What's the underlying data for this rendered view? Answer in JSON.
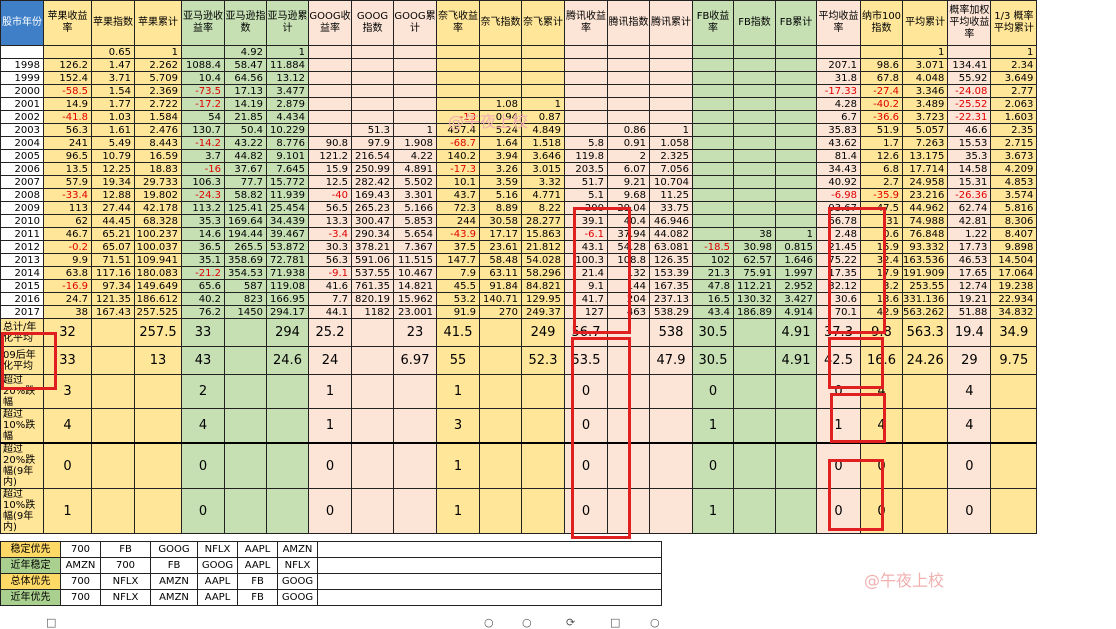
{
  "headers": [
    "股市年份",
    "苹果收益率",
    "苹果指数",
    "苹果累计",
    "亚马逊收益率",
    "亚马逊指数",
    "亚马逊累计",
    "GOOG收益率",
    "GOOG指数",
    "GOOG累计",
    "奈飞收益率",
    "奈飞指数",
    "奈飞累计",
    "腾讯收益率",
    "腾讯指数",
    "腾讯累计",
    "FB收益率",
    "FB指数",
    "FB累计",
    "平均收益率",
    "纳市100指数",
    "平均累计",
    "概率加权平均收益率",
    "1/3 概率平均累计"
  ],
  "col_colors": [
    "",
    "y",
    "y",
    "y",
    "g",
    "g",
    "g",
    "p",
    "p",
    "p",
    "y",
    "y",
    "y",
    "p",
    "p",
    "p",
    "g",
    "g",
    "g",
    "p",
    "y",
    "y",
    "p",
    "y"
  ],
  "base_row": [
    "",
    "",
    "0.65",
    "1",
    "",
    "4.92",
    "1",
    "",
    "",
    "",
    "",
    "",
    "",
    "",
    "",
    "",
    "",
    "",
    "",
    "",
    "",
    "1",
    "",
    "1"
  ],
  "rows": [
    [
      "1998",
      "126.2",
      "1.47",
      "2.262",
      "1088.4",
      "58.47",
      "11.884",
      "",
      "",
      "",
      "",
      "",
      "",
      "",
      "",
      "",
      "",
      "",
      "",
      "207.1",
      "98.6",
      "3.071",
      "134.41",
      "2.34"
    ],
    [
      "1999",
      "152.4",
      "3.71",
      "5.709",
      "10.4",
      "64.56",
      "13.12",
      "",
      "",
      "",
      "",
      "",
      "",
      "",
      "",
      "",
      "",
      "",
      "",
      "31.8",
      "67.8",
      "4.048",
      "55.92",
      "3.649"
    ],
    [
      "2000",
      "-58.5",
      "1.54",
      "2.369",
      "-73.5",
      "17.13",
      "3.477",
      "",
      "",
      "",
      "",
      "",
      "",
      "",
      "",
      "",
      "",
      "",
      "",
      "-17.33",
      "-27.4",
      "3.346",
      "-24.08",
      "2.77"
    ],
    [
      "2001",
      "14.9",
      "1.77",
      "2.722",
      "-17.2",
      "14.19",
      "2.879",
      "",
      "",
      "",
      "",
      "1.08",
      "1",
      "",
      "",
      "",
      "",
      "",
      "",
      "4.28",
      "-40.2",
      "3.489",
      "-25.52",
      "2.063"
    ],
    [
      "2002",
      "-41.8",
      "1.03",
      "1.584",
      "54",
      "21.85",
      "4.434",
      "",
      "",
      "",
      "-13",
      "0.94",
      "0.87",
      "",
      "",
      "",
      "",
      "",
      "",
      "6.7",
      "-36.6",
      "3.723",
      "-22.31",
      "1.603"
    ],
    [
      "2003",
      "56.3",
      "1.61",
      "2.476",
      "130.7",
      "50.4",
      "10.229",
      "",
      "51.3",
      "1",
      "457.4",
      "5.24",
      "4.849",
      "",
      "0.86",
      "1",
      "",
      "",
      "",
      "35.83",
      "51.9",
      "5.057",
      "46.6",
      "2.35"
    ],
    [
      "2004",
      "241",
      "5.49",
      "8.443",
      "-14.2",
      "43.22",
      "8.776",
      "90.8",
      "97.9",
      "1.908",
      "-68.7",
      "1.64",
      "1.518",
      "5.8",
      "0.91",
      "1.058",
      "",
      "",
      "",
      "43.62",
      "1.7",
      "7.263",
      "15.53",
      "2.715"
    ],
    [
      "2005",
      "96.5",
      "10.79",
      "16.59",
      "3.7",
      "44.82",
      "9.101",
      "121.2",
      "216.54",
      "4.22",
      "140.2",
      "3.94",
      "3.646",
      "119.8",
      "2",
      "2.325",
      "",
      "",
      "",
      "81.4",
      "12.6",
      "13.175",
      "35.3",
      "3.673"
    ],
    [
      "2006",
      "13.5",
      "12.25",
      "18.83",
      "-16",
      "37.67",
      "7.645",
      "15.9",
      "250.99",
      "4.891",
      "-17.3",
      "3.26",
      "3.015",
      "203.5",
      "6.07",
      "7.056",
      "",
      "",
      "",
      "34.43",
      "6.8",
      "17.714",
      "14.58",
      "4.209"
    ],
    [
      "2007",
      "57.9",
      "19.34",
      "29.733",
      "106.3",
      "77.7",
      "15.772",
      "12.5",
      "282.42",
      "5.502",
      "10.1",
      "3.59",
      "3.32",
      "51.7",
      "9.21",
      "10.704",
      "",
      "",
      "",
      "40.92",
      "2.7",
      "24.958",
      "15.31",
      "4.853"
    ],
    [
      "2008",
      "-33.4",
      "12.88",
      "19.802",
      "-24.3",
      "58.82",
      "11.939",
      "-40",
      "169.43",
      "3.301",
      "43.7",
      "5.16",
      "4.771",
      "5.1",
      "9.68",
      "11.25",
      "",
      "",
      "",
      "-6.98",
      "-35.9",
      "23.216",
      "-26.36",
      "3.574"
    ],
    [
      "2009",
      "113",
      "27.44",
      "42.178",
      "113.2",
      "125.41",
      "25.454",
      "56.5",
      "265.23",
      "5.166",
      "72.3",
      "8.89",
      "8.22",
      "200",
      "29.04",
      "33.75",
      "",
      "",
      "",
      "93.67",
      "47.5",
      "44.962",
      "62.74",
      "5.816"
    ],
    [
      "2010",
      "62",
      "44.45",
      "68.328",
      "35.3",
      "169.64",
      "34.439",
      "13.3",
      "300.47",
      "5.853",
      "244",
      "30.58",
      "28.277",
      "39.1",
      "40.4",
      "46.946",
      "",
      "",
      "",
      "66.78",
      "31",
      "74.988",
      "42.81",
      "8.306"
    ],
    [
      "2011",
      "46.7",
      "65.21",
      "100.237",
      "14.6",
      "194.44",
      "39.467",
      "-3.4",
      "290.34",
      "5.654",
      "-43.9",
      "17.17",
      "15.863",
      "-6.1",
      "37.94",
      "44.082",
      "",
      "38",
      "1",
      "2.48",
      "0.6",
      "76.848",
      "1.22",
      "8.407"
    ],
    [
      "2012",
      "-0.2",
      "65.07",
      "100.037",
      "36.5",
      "265.5",
      "53.872",
      "30.3",
      "378.21",
      "7.367",
      "37.5",
      "23.61",
      "21.812",
      "43.1",
      "54.28",
      "63.081",
      "-18.5",
      "30.98",
      "0.815",
      "21.45",
      "15.9",
      "93.332",
      "17.73",
      "9.898"
    ],
    [
      "2013",
      "9.9",
      "71.51",
      "109.941",
      "35.1",
      "358.69",
      "72.781",
      "56.3",
      "591.06",
      "11.515",
      "147.7",
      "58.48",
      "54.028",
      "100.3",
      "108.8",
      "126.35",
      "102",
      "62.57",
      "1.646",
      "75.22",
      "32.4",
      "163.536",
      "46.53",
      "14.504"
    ],
    [
      "2014",
      "63.8",
      "117.16",
      "180.083",
      "-21.2",
      "354.53",
      "71.938",
      "-9.1",
      "537.55",
      "10.467",
      "7.9",
      "63.11",
      "58.296",
      "21.4",
      "132",
      "153.39",
      "21.3",
      "75.91",
      "1.997",
      "17.35",
      "17.9",
      "191.909",
      "17.65",
      "17.064"
    ],
    [
      "2015",
      "-16.9",
      "97.34",
      "149.649",
      "65.6",
      "587",
      "119.08",
      "41.6",
      "761.35",
      "14.821",
      "45.5",
      "91.84",
      "84.821",
      "9.1",
      "144",
      "167.35",
      "47.8",
      "112.21",
      "2.952",
      "32.12",
      "3.2",
      "253.55",
      "12.74",
      "19.238"
    ],
    [
      "2016",
      "24.7",
      "121.35",
      "186.612",
      "40.2",
      "823",
      "166.95",
      "7.7",
      "820.19",
      "15.962",
      "53.2",
      "140.71",
      "129.95",
      "41.7",
      "204",
      "237.13",
      "16.5",
      "130.32",
      "3.427",
      "30.6",
      "13.6",
      "331.136",
      "19.21",
      "22.934"
    ],
    [
      "2017",
      "38",
      "167.43",
      "257.525",
      "76.2",
      "1450",
      "294.17",
      "44.1",
      "1182",
      "23.001",
      "91.9",
      "270",
      "249.37",
      "127",
      "463",
      "538.29",
      "43.4",
      "186.89",
      "4.914",
      "70.1",
      "42.9",
      "563.262",
      "51.88",
      "34.832"
    ]
  ],
  "summary_rows": [
    [
      "总计/年化平均",
      "32",
      "",
      "257.5",
      "33",
      "",
      "294",
      "25.2",
      "",
      "23",
      "41.5",
      "",
      "249",
      "56.7",
      "",
      "538",
      "30.5",
      "",
      "4.91",
      "37.3",
      "9.8",
      "563.3",
      "19.4",
      "34.9"
    ],
    [
      "09后年化平均",
      "33",
      "",
      "13",
      "43",
      "",
      "24.6",
      "24",
      "",
      "6.97",
      "55",
      "",
      "52.3",
      "53.5",
      "",
      "47.9",
      "30.5",
      "",
      "4.91",
      "42.5",
      "16.6",
      "24.26",
      "29",
      "9.75"
    ]
  ],
  "count_rows": [
    [
      "超过20%跌幅",
      "3",
      "",
      "",
      "2",
      "",
      "",
      "1",
      "",
      "",
      "1",
      "",
      "",
      "0",
      "",
      "",
      "0",
      "",
      "",
      "0",
      "4",
      "",
      "4",
      ""
    ],
    [
      "超过10%跌幅",
      "4",
      "",
      "",
      "4",
      "",
      "",
      "1",
      "",
      "",
      "3",
      "",
      "",
      "0",
      "",
      "",
      "1",
      "",
      "",
      "1",
      "4",
      "",
      "4",
      ""
    ],
    [
      "超过20%跌幅(9年内)",
      "0",
      "",
      "",
      "0",
      "",
      "",
      "0",
      "",
      "",
      "1",
      "",
      "",
      "0",
      "",
      "",
      "0",
      "",
      "",
      "0",
      "0",
      "",
      "0",
      ""
    ],
    [
      "超过10%跌幅(9年内)",
      "1",
      "",
      "",
      "0",
      "",
      "",
      "0",
      "",
      "",
      "1",
      "",
      "",
      "0",
      "",
      "",
      "1",
      "",
      "",
      "0",
      "0",
      "",
      "0",
      ""
    ]
  ],
  "ranking": [
    [
      "稳定优先",
      "700",
      "FB",
      "GOOG",
      "NFLX",
      "AAPL",
      "AMZN"
    ],
    [
      "近年稳定",
      "AMZN",
      "700",
      "FB",
      "GOOG",
      "AAPL",
      "NFLX"
    ],
    [
      "总体优先",
      "700",
      "NFLX",
      "AMZN",
      "AAPL",
      "FB",
      "GOOG"
    ],
    [
      "近年优先",
      "700",
      "NFLX",
      "AMZN",
      "AAPL",
      "FB",
      "GOOG"
    ]
  ],
  "watermarks": [
    "@午夜上校",
    "@午夜上校"
  ]
}
